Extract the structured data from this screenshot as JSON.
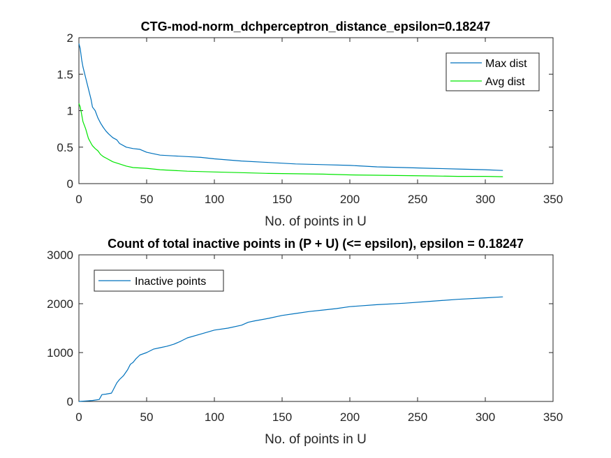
{
  "chart_data": [
    {
      "type": "line",
      "title": "CTG-mod-norm_dchperceptron_distance_epsilon=0.18247",
      "xlabel": "No. of points in U",
      "ylabel": "",
      "xlim": [
        0,
        350
      ],
      "ylim": [
        0,
        2
      ],
      "xticks": [
        0,
        50,
        100,
        150,
        200,
        250,
        300,
        350
      ],
      "yticks": [
        0,
        0.5,
        1,
        1.5,
        2
      ],
      "xtick_labels": [
        "0",
        "50",
        "100",
        "150",
        "200",
        "250",
        "300",
        "350"
      ],
      "ytick_labels": [
        "0",
        "0.5",
        "1",
        "1.5",
        "2"
      ],
      "grid": false,
      "legend_position": "top-right",
      "series": [
        {
          "name": "Max dist",
          "color": "#0072BD",
          "x": [
            0,
            1,
            2,
            3,
            5,
            7,
            9,
            10,
            12,
            14,
            16,
            18,
            20,
            22,
            25,
            28,
            30,
            35,
            40,
            45,
            50,
            55,
            60,
            70,
            80,
            90,
            100,
            120,
            140,
            160,
            180,
            200,
            220,
            240,
            260,
            280,
            300,
            313
          ],
          "y": [
            1.92,
            1.85,
            1.7,
            1.6,
            1.45,
            1.3,
            1.15,
            1.05,
            1.0,
            0.9,
            0.83,
            0.77,
            0.72,
            0.68,
            0.63,
            0.6,
            0.55,
            0.5,
            0.48,
            0.47,
            0.43,
            0.41,
            0.39,
            0.38,
            0.37,
            0.36,
            0.34,
            0.31,
            0.29,
            0.27,
            0.26,
            0.25,
            0.23,
            0.22,
            0.21,
            0.2,
            0.19,
            0.18
          ]
        },
        {
          "name": "Avg dist",
          "color": "#00E600",
          "x": [
            0,
            1,
            2,
            3,
            5,
            7,
            9,
            10,
            12,
            14,
            16,
            18,
            20,
            25,
            30,
            35,
            40,
            50,
            60,
            80,
            100,
            120,
            140,
            160,
            180,
            200,
            220,
            240,
            260,
            280,
            300,
            313
          ],
          "y": [
            1.1,
            1.05,
            0.95,
            0.85,
            0.75,
            0.62,
            0.55,
            0.52,
            0.48,
            0.45,
            0.4,
            0.37,
            0.35,
            0.3,
            0.27,
            0.24,
            0.22,
            0.21,
            0.19,
            0.17,
            0.16,
            0.15,
            0.14,
            0.135,
            0.13,
            0.12,
            0.115,
            0.11,
            0.105,
            0.1,
            0.1,
            0.095
          ]
        }
      ]
    },
    {
      "type": "line",
      "title": "Count of total inactive points in (P + U) (<= epsilon), epsilon = 0.18247",
      "xlabel": "No. of points in U",
      "ylabel": "",
      "xlim": [
        0,
        350
      ],
      "ylim": [
        0,
        3000
      ],
      "xticks": [
        0,
        50,
        100,
        150,
        200,
        250,
        300,
        350
      ],
      "yticks": [
        0,
        1000,
        2000,
        3000
      ],
      "xtick_labels": [
        "0",
        "50",
        "100",
        "150",
        "200",
        "250",
        "300",
        "350"
      ],
      "ytick_labels": [
        "0",
        "1000",
        "2000",
        "3000"
      ],
      "grid": false,
      "legend_position": "top-left",
      "series": [
        {
          "name": "Inactive points",
          "color": "#0072BD",
          "x": [
            0,
            5,
            10,
            15,
            17,
            20,
            24,
            25,
            28,
            30,
            33,
            36,
            38,
            40,
            42,
            45,
            50,
            55,
            60,
            65,
            70,
            75,
            80,
            90,
            100,
            110,
            120,
            125,
            130,
            140,
            150,
            160,
            170,
            180,
            190,
            200,
            220,
            240,
            260,
            280,
            300,
            313
          ],
          "y": [
            0,
            10,
            20,
            40,
            140,
            150,
            170,
            220,
            380,
            450,
            530,
            650,
            760,
            800,
            870,
            950,
            1000,
            1070,
            1100,
            1130,
            1170,
            1230,
            1300,
            1380,
            1460,
            1500,
            1560,
            1620,
            1650,
            1700,
            1760,
            1800,
            1840,
            1870,
            1900,
            1940,
            1980,
            2010,
            2050,
            2090,
            2120,
            2140
          ]
        }
      ]
    }
  ]
}
